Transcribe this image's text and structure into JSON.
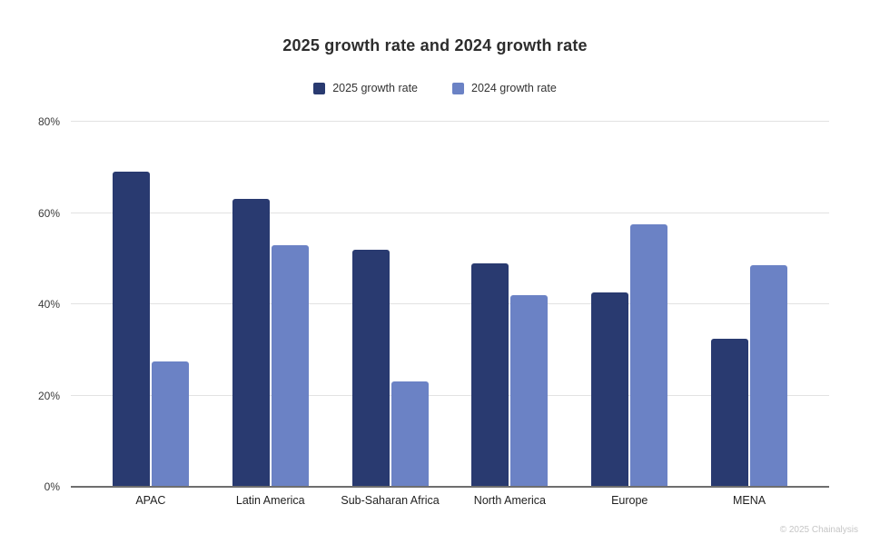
{
  "chart": {
    "title": "2025 growth rate and 2024 growth rate",
    "footer": "© 2025 Chainalysis"
  },
  "colors": {
    "series_2025": "#293a70",
    "series_2024": "#6b82c5",
    "gridline": "#e2e2e2",
    "axis_line": "#6e6e6e",
    "title_text": "#2d2d2d",
    "tick_text": "#3a3a3a",
    "footer_text": "#c6c6c6",
    "background": "#ffffff"
  },
  "chart_data": {
    "type": "bar",
    "title": "2025 growth rate and 2024 growth rate",
    "categories": [
      "APAC",
      "Latin America",
      "Sub-Saharan Africa",
      "North America",
      "Europe",
      "MENA"
    ],
    "series": [
      {
        "name": "2025 growth rate",
        "color": "#293a70",
        "values": [
          69,
          63,
          52,
          49,
          42.5,
          32.5
        ]
      },
      {
        "name": "2024 growth rate",
        "color": "#6b82c5",
        "values": [
          27.5,
          53,
          23,
          42,
          57.5,
          48.5
        ]
      }
    ],
    "xlabel": "",
    "ylabel": "",
    "ylim": [
      0,
      80
    ],
    "ytick_values": [
      0,
      20,
      40,
      60,
      80
    ],
    "ytick_labels": [
      "0%",
      "20%",
      "40%",
      "60%",
      "80%"
    ],
    "value_unit": "%",
    "grid": true,
    "legend_position": "top-center"
  }
}
